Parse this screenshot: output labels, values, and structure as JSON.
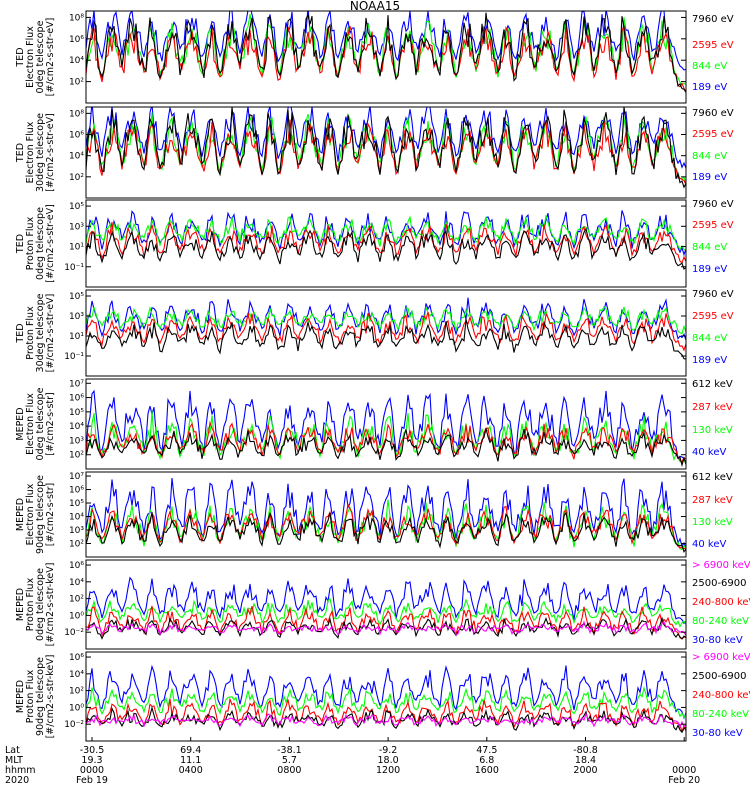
{
  "title": "NOAA15",
  "colors": {
    "black": "#000000",
    "blue": "#0000ff",
    "red": "#ff0000",
    "green": "#00ff00",
    "magenta": "#ff00ff"
  },
  "chart_data": [
    {
      "type": "line",
      "ylabel_lines": [
        "TED",
        "Electron Flux",
        "0deg telescope",
        "[#/cm2-s-str-eV]"
      ],
      "y_scale": "log",
      "yticks": [
        "10²",
        "10⁴",
        "10⁶",
        "10⁸"
      ],
      "ylim": [
        1,
        100000000
      ],
      "series": [
        {
          "name": "7960 eV",
          "color": "#000000",
          "base": 12,
          "peak": 120000000
        },
        {
          "name": "2595 eV",
          "color": "#ff0000",
          "base": 18,
          "peak": 8000000
        },
        {
          "name": "844 eV",
          "color": "#00ff00",
          "base": 30,
          "peak": 30000000
        },
        {
          "name": "189 eV",
          "color": "#0000ff",
          "base": 800,
          "peak": 300000000
        }
      ]
    },
    {
      "type": "line",
      "ylabel_lines": [
        "TED",
        "Electron Flux",
        "30deg telescope",
        "[#/cm2-s-str-eV]"
      ],
      "y_scale": "log",
      "yticks": [
        "10²",
        "10⁴",
        "10⁶",
        "10⁸"
      ],
      "ylim": [
        1,
        100000000
      ],
      "series": [
        {
          "name": "7960 eV",
          "color": "#000000",
          "base": 12,
          "peak": 100000000
        },
        {
          "name": "2595 eV",
          "color": "#ff0000",
          "base": 20,
          "peak": 8000000
        },
        {
          "name": "844 eV",
          "color": "#00ff00",
          "base": 40,
          "peak": 30000000
        },
        {
          "name": "189 eV",
          "color": "#0000ff",
          "base": 600,
          "peak": 300000000
        }
      ]
    },
    {
      "type": "line",
      "ylabel_lines": [
        "TED",
        "Proton Flux",
        "0deg telescope",
        "[#/cm2-s-str-eV]"
      ],
      "y_scale": "log",
      "yticks": [
        "10⁻¹",
        "10¹",
        "10³",
        "10⁵"
      ],
      "ylim": [
        0.1,
        100000
      ],
      "series": [
        {
          "name": "7960 eV",
          "color": "#000000",
          "base": 3,
          "peak": 800
        },
        {
          "name": "2595 eV",
          "color": "#ff0000",
          "base": 8,
          "peak": 2000
        },
        {
          "name": "844 eV",
          "color": "#00ff00",
          "base": 60,
          "peak": 6000
        },
        {
          "name": "189 eV",
          "color": "#0000ff",
          "base": 25,
          "peak": 20000
        }
      ]
    },
    {
      "type": "line",
      "ylabel_lines": [
        "TED",
        "Proton Flux",
        "30deg telescope",
        "[#/cm2-s-str-eV]"
      ],
      "y_scale": "log",
      "yticks": [
        "10⁻¹",
        "10¹",
        "10³",
        "10⁵"
      ],
      "ylim": [
        0.1,
        100000
      ],
      "series": [
        {
          "name": "7960 eV",
          "color": "#000000",
          "base": 3,
          "peak": 600
        },
        {
          "name": "2595 eV",
          "color": "#ff0000",
          "base": 10,
          "peak": 2000
        },
        {
          "name": "844 eV",
          "color": "#00ff00",
          "base": 150,
          "peak": 5000
        },
        {
          "name": "189 eV",
          "color": "#0000ff",
          "base": 40,
          "peak": 20000
        }
      ]
    },
    {
      "type": "line",
      "ylabel_lines": [
        "MEPED",
        "Electron Flux",
        "0deg telescope",
        "[#/cm2-s-str]"
      ],
      "y_scale": "log",
      "yticks": [
        "10²",
        "10³",
        "10⁴",
        "10⁵",
        "10⁶",
        "10⁷"
      ],
      "ylim": [
        30,
        10000000
      ],
      "series": [
        {
          "name": "612 keV",
          "color": "#000000",
          "base": 80,
          "peak": 6000
        },
        {
          "name": "287 keV",
          "color": "#ff0000",
          "base": 100,
          "peak": 20000
        },
        {
          "name": "130 keV",
          "color": "#00ff00",
          "base": 60,
          "peak": 60000
        },
        {
          "name": "40 keV",
          "color": "#0000ff",
          "base": 100,
          "peak": 2000000
        }
      ]
    },
    {
      "type": "line",
      "ylabel_lines": [
        "MEPED",
        "Electron Flux",
        "90deg telescope",
        "[#/cm2-s-str]"
      ],
      "y_scale": "log",
      "yticks": [
        "10²",
        "10³",
        "10⁴",
        "10⁵",
        "10⁶",
        "10⁷"
      ],
      "ylim": [
        30,
        10000000
      ],
      "series": [
        {
          "name": "612 keV",
          "color": "#000000",
          "base": 100,
          "peak": 20000
        },
        {
          "name": "287 keV",
          "color": "#ff0000",
          "base": 120,
          "peak": 60000
        },
        {
          "name": "130 keV",
          "color": "#00ff00",
          "base": 80,
          "peak": 100000
        },
        {
          "name": "40 keV",
          "color": "#0000ff",
          "base": 150,
          "peak": 3000000
        }
      ]
    },
    {
      "type": "line",
      "ylabel_lines": [
        "MEPED",
        "Proton Flux",
        "0deg telescope",
        "[#/cm2-s-str-keV]"
      ],
      "y_scale": "log",
      "yticks": [
        "10⁻²",
        "10⁰",
        "10²",
        "10⁴",
        "10⁶"
      ],
      "ylim": [
        0.01,
        1000000
      ],
      "series": [
        {
          "name": "> 6900 keV",
          "color": "#ff00ff",
          "base": 0.3,
          "peak": 1.5
        },
        {
          "name": "2500-6900",
          "color": "#000000",
          "base": 0.1,
          "peak": 5
        },
        {
          "name": "240-800 keV",
          "color": "#ff0000",
          "base": 0.12,
          "peak": 50
        },
        {
          "name": "80-240 keV",
          "color": "#00ff00",
          "base": 1.5,
          "peak": 200
        },
        {
          "name": "30-80 keV",
          "color": "#0000ff",
          "base": 2,
          "peak": 20000
        }
      ]
    },
    {
      "type": "line",
      "ylabel_lines": [
        "MEPED",
        "Proton Flux",
        "90deg telescope",
        "[#/cm2-s-str-keV]"
      ],
      "y_scale": "log",
      "yticks": [
        "10⁻²",
        "10⁰",
        "10²",
        "10⁴",
        "10⁶"
      ],
      "ylim": [
        0.01,
        1000000
      ],
      "series": [
        {
          "name": "> 6900 keV",
          "color": "#ff00ff",
          "base": 0.3,
          "peak": 1.5
        },
        {
          "name": "2500-6900",
          "color": "#000000",
          "base": 0.1,
          "peak": 5
        },
        {
          "name": "240-800 keV",
          "color": "#ff0000",
          "base": 0.12,
          "peak": 50
        },
        {
          "name": "80-240 keV",
          "color": "#00ff00",
          "base": 1.5,
          "peak": 500
        },
        {
          "name": "30-80 keV",
          "color": "#0000ff",
          "base": 2,
          "peak": 50000
        }
      ]
    }
  ],
  "x_axis": {
    "row_labels": [
      "Lat",
      "MLT",
      "hhmm",
      "2020"
    ],
    "ticks": [
      {
        "lat": "-30.5",
        "mlt": "19.3",
        "hhmm": "0000",
        "date": "Feb 19"
      },
      {
        "lat": "69.4",
        "mlt": "11.1",
        "hhmm": "0400",
        "date": ""
      },
      {
        "lat": "-38.1",
        "mlt": "5.7",
        "hhmm": "0800",
        "date": ""
      },
      {
        "lat": "-9.2",
        "mlt": "18.0",
        "hhmm": "1200",
        "date": ""
      },
      {
        "lat": "47.5",
        "mlt": "6.8",
        "hhmm": "1600",
        "date": ""
      },
      {
        "lat": "-80.8",
        "mlt": "18.4",
        "hhmm": "2000",
        "date": ""
      },
      {
        "lat": "",
        "mlt": "",
        "hhmm": "0000",
        "date": "Feb 20"
      }
    ]
  }
}
